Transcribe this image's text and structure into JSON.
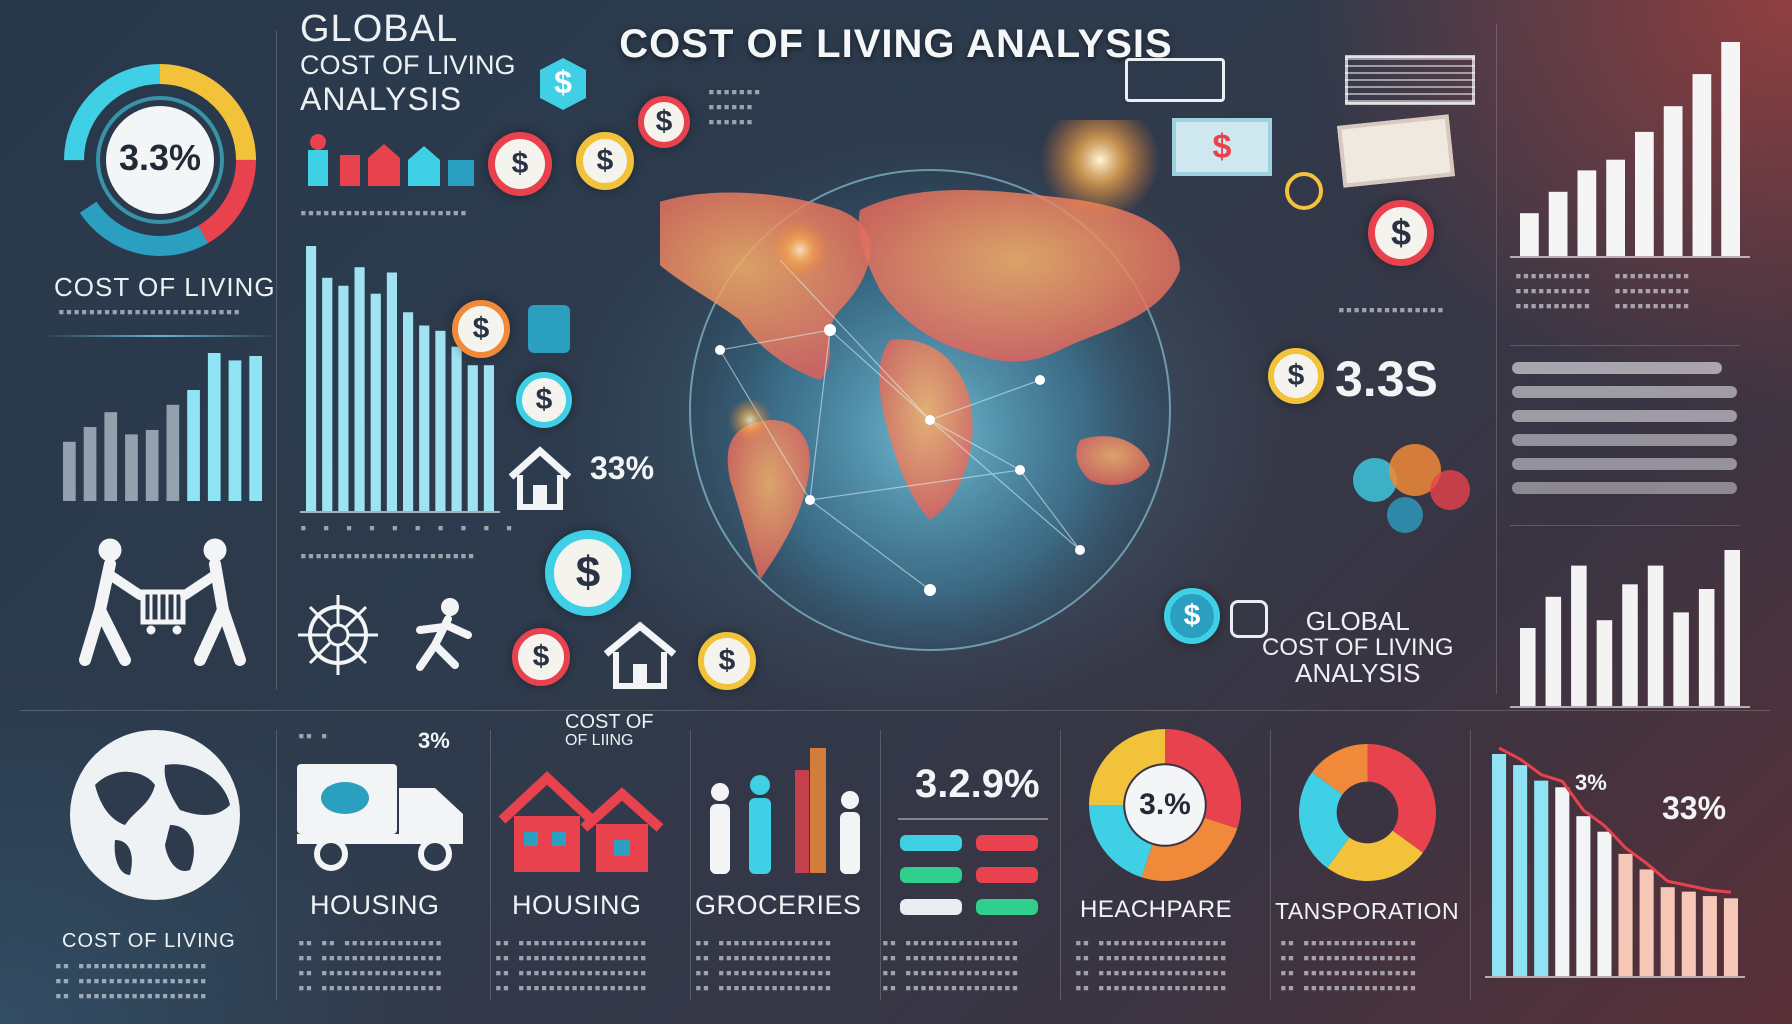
{
  "header": {
    "title": "COST OF LIVING ANALYSIS"
  },
  "top_left": {
    "ring_value": "3.3%",
    "heading_line1": "GLOBAL",
    "heading_line2": "COST OF LIVING",
    "heading_line3": "ANALYSIS",
    "caption": "COST OF LIVING"
  },
  "center": {
    "stat_percent": "33%",
    "currency_symbol": "$"
  },
  "right_panel": {
    "big_value": "3.3S",
    "label_line1": "GLOBAL",
    "label_line2": "COST OF LIVING",
    "label_line3": "ANALYSIS"
  },
  "bottom": {
    "globe_caption": "COST OF LIVING",
    "small_percent": "3%",
    "cost_of_label_line1": "COST OF",
    "cost_of_label_line2": "OF LIING",
    "category_1": "HOUSING",
    "category_2": "HOUSING",
    "category_3": "GROCERIES",
    "stat_value": "3.2.9%",
    "category_4": "HEACHPARE",
    "donut_1_value": "3.%",
    "category_5": "TANSPORATION",
    "trend_label_1": "3%",
    "trend_label_2": "33%"
  },
  "colors": {
    "accent_cyan": "#3fd0e6",
    "accent_yellow": "#f2c23a",
    "accent_red": "#e8424e",
    "accent_orange": "#f08a3a",
    "panel_bg": "#2b3a4c"
  },
  "chart_data": [
    {
      "type": "bar",
      "values": [
        40,
        50,
        60,
        45,
        48,
        65,
        75,
        100,
        95,
        98
      ]
    },
    {
      "type": "bar",
      "values": [
        100,
        88,
        85,
        92,
        82,
        90,
        75,
        70,
        68,
        62,
        55,
        55
      ]
    },
    {
      "type": "bar",
      "values": [
        20,
        30,
        40,
        45,
        58,
        70,
        85,
        100
      ]
    },
    {
      "type": "bar",
      "values": [
        50,
        70,
        90,
        55,
        78,
        90,
        60,
        75,
        100
      ]
    },
    {
      "type": "bar",
      "values": [
        100,
        95,
        88,
        85,
        72,
        65,
        55,
        48,
        40,
        38,
        36,
        35
      ]
    },
    {
      "type": "pie",
      "values": [
        30,
        25,
        20,
        25
      ]
    },
    {
      "type": "pie",
      "values": [
        35,
        25,
        25,
        15
      ]
    },
    {
      "type": "pie",
      "values": [
        28,
        22,
        25,
        25
      ]
    }
  ]
}
